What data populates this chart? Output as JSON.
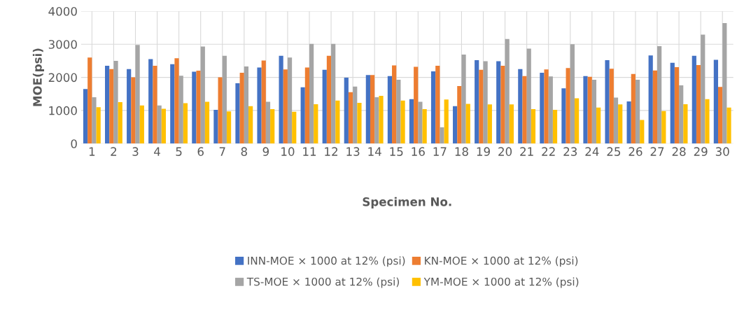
{
  "chart_data": {
    "type": "bar",
    "xlabel": "Specimen No.",
    "ylabel": "MOE(psi)",
    "categories": [
      "1",
      "2",
      "3",
      "4",
      "5",
      "6",
      "7",
      "8",
      "9",
      "10",
      "11",
      "12",
      "13",
      "14",
      "15",
      "16",
      "17",
      "18",
      "19",
      "20",
      "21",
      "22",
      "23",
      "24",
      "25",
      "26",
      "27",
      "28",
      "29",
      "30"
    ],
    "series": [
      {
        "name": "INN-MOE × 1000 at 12% (psi)",
        "color": "#4472c4",
        "values": [
          1650,
          2350,
          2250,
          2550,
          2400,
          2170,
          1020,
          1820,
          2300,
          2650,
          1700,
          2230,
          1990,
          2070,
          2040,
          1340,
          2180,
          1130,
          2520,
          2490,
          2250,
          2140,
          1670,
          2040,
          2520,
          1270,
          2660,
          2440,
          2650,
          2530
        ]
      },
      {
        "name": "KN-MOE × 1000 at 12% (psi)",
        "color": "#ed7d31",
        "values": [
          2600,
          2250,
          2000,
          2350,
          2580,
          2200,
          2000,
          2140,
          2510,
          2240,
          2300,
          2650,
          1550,
          2070,
          2360,
          2320,
          2350,
          1740,
          2230,
          2350,
          2040,
          2240,
          2280,
          2020,
          2260,
          2100,
          2210,
          2310,
          2370,
          1710
        ]
      },
      {
        "name": "TS-MOE × 1000 at 12% (psi)",
        "color": "#a5a5a5",
        "values": [
          1400,
          2500,
          2980,
          1150,
          2050,
          2930,
          2650,
          2330,
          1260,
          2600,
          3010,
          3010,
          1720,
          1400,
          1930,
          1260,
          490,
          2690,
          2490,
          3160,
          2870,
          2030,
          3000,
          1930,
          1390,
          1930,
          2940,
          1760,
          3290,
          3640
        ]
      },
      {
        "name": "YM-MOE × 1000 at 12% (psi)",
        "color": "#ffc000",
        "values": [
          1100,
          1250,
          1150,
          1050,
          1220,
          1260,
          970,
          1130,
          1040,
          960,
          1190,
          1300,
          1230,
          1440,
          1300,
          1040,
          1330,
          1200,
          1180,
          1180,
          1040,
          1020,
          1370,
          1090,
          1180,
          710,
          980,
          1190,
          1340,
          1090
        ]
      }
    ],
    "ylim": [
      0,
      4000
    ],
    "yticks": [
      0,
      1000,
      2000,
      3000,
      4000
    ],
    "grid": true,
    "legend": "bottom"
  }
}
